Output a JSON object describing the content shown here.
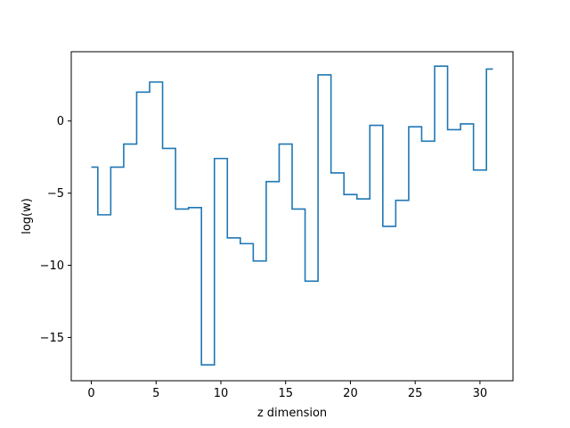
{
  "chart_data": {
    "type": "line",
    "drawstyle": "steps-mid",
    "title": "",
    "xlabel": "z dimension",
    "ylabel": "log(w)",
    "xlim": [
      -1.55,
      32.55
    ],
    "ylim": [
      -18.0,
      4.8
    ],
    "x_ticks": [
      0,
      5,
      10,
      15,
      20,
      25,
      30
    ],
    "x_tick_labels": [
      "0",
      "5",
      "10",
      "15",
      "20",
      "25",
      "30"
    ],
    "y_ticks": [
      -15,
      -10,
      -5,
      0
    ],
    "y_tick_labels": [
      "−15",
      "−10",
      "−5",
      "0"
    ],
    "grid": false,
    "legend": "none",
    "line_color": "#1f77b4",
    "series": [
      {
        "x": [
          0,
          1,
          2,
          3,
          4,
          5,
          6,
          7,
          8,
          9,
          10,
          11,
          12,
          13,
          14,
          15,
          16,
          17,
          18,
          19,
          20,
          21,
          22,
          23,
          24,
          25,
          26,
          27,
          28,
          29,
          30,
          31
        ],
        "values": [
          -3.2,
          -6.5,
          -3.2,
          -1.6,
          2.0,
          2.7,
          -1.9,
          -6.1,
          -6.0,
          -16.9,
          -2.6,
          -8.1,
          -8.5,
          -9.7,
          -4.2,
          -1.6,
          -6.1,
          -11.1,
          3.2,
          -3.6,
          -5.1,
          -5.4,
          -0.3,
          -7.3,
          -5.5,
          -0.4,
          -1.4,
          3.8,
          -0.6,
          -0.2,
          -3.4,
          3.6
        ]
      }
    ]
  }
}
